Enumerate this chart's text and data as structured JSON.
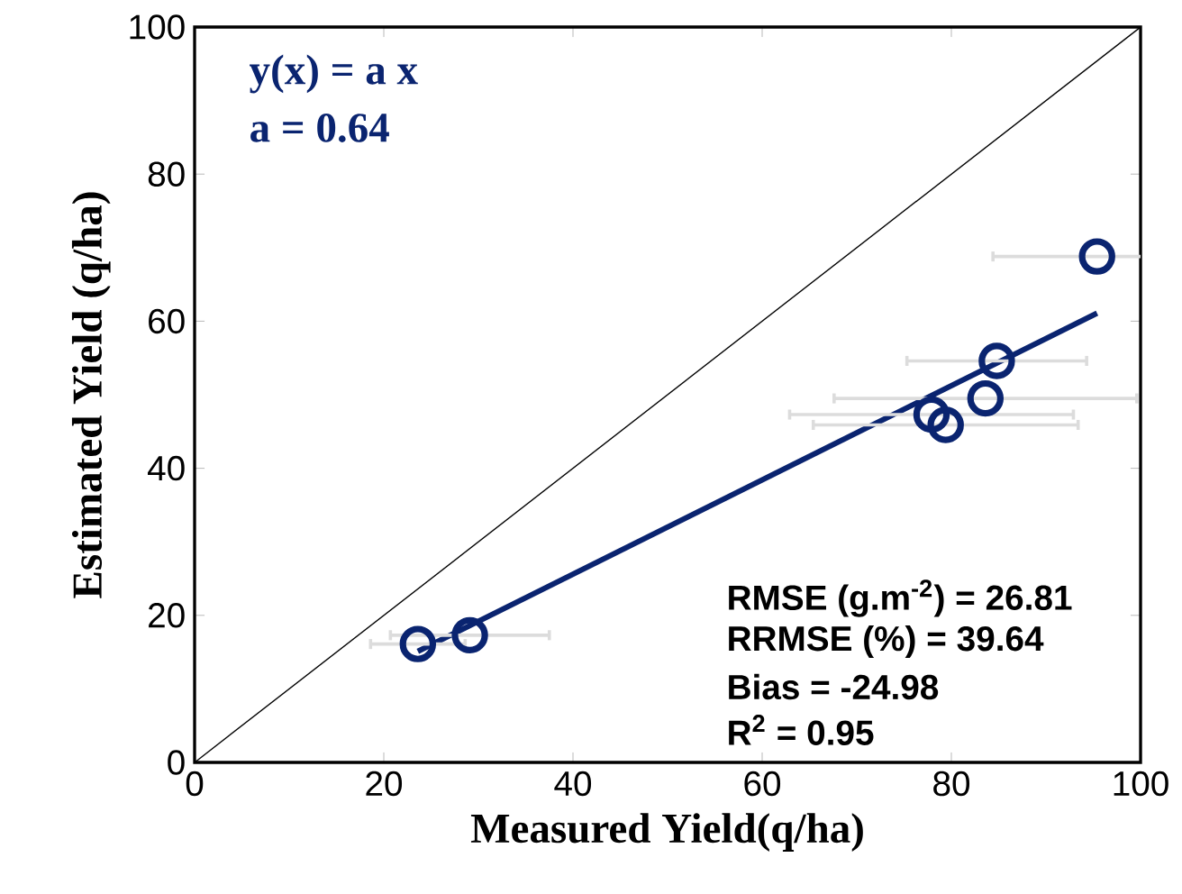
{
  "chart_data": {
    "type": "scatter",
    "xlabel": "Measured Yield(q/ha)",
    "ylabel": "Estimated Yield (q/ha)",
    "xlim": [
      0,
      100
    ],
    "ylim": [
      0,
      100
    ],
    "xticks": [
      0,
      20,
      40,
      60,
      80,
      100
    ],
    "yticks": [
      0,
      20,
      40,
      60,
      80,
      100
    ],
    "series": [
      {
        "type": "line",
        "color": "#000000",
        "x": [
          0,
          100
        ],
        "values": [
          0,
          100
        ]
      },
      {
        "type": "line",
        "color": "#0a2470",
        "x": [
          23.6,
          95.4
        ],
        "values": [
          15.1,
          61.1
        ]
      },
      {
        "marker": "circle",
        "color": "#0a2470",
        "x": [
          23.6,
          29.1,
          77.9,
          79.4,
          83.6,
          84.8,
          95.4
        ],
        "values": [
          16.1,
          17.3,
          47.3,
          45.9,
          49.5,
          54.6,
          68.8
        ],
        "xerrors": [
          5,
          8.4,
          15,
          14,
          16,
          9.5,
          11
        ]
      }
    ],
    "annotations": [
      "y(x) = a x",
      "a = 0.64",
      "RMSE (g.m$^{-2}$) = 26.81",
      "RRMSE (%) = 39.64",
      "Bias = -24.98",
      "R$^{2}$ = 0.95"
    ]
  }
}
